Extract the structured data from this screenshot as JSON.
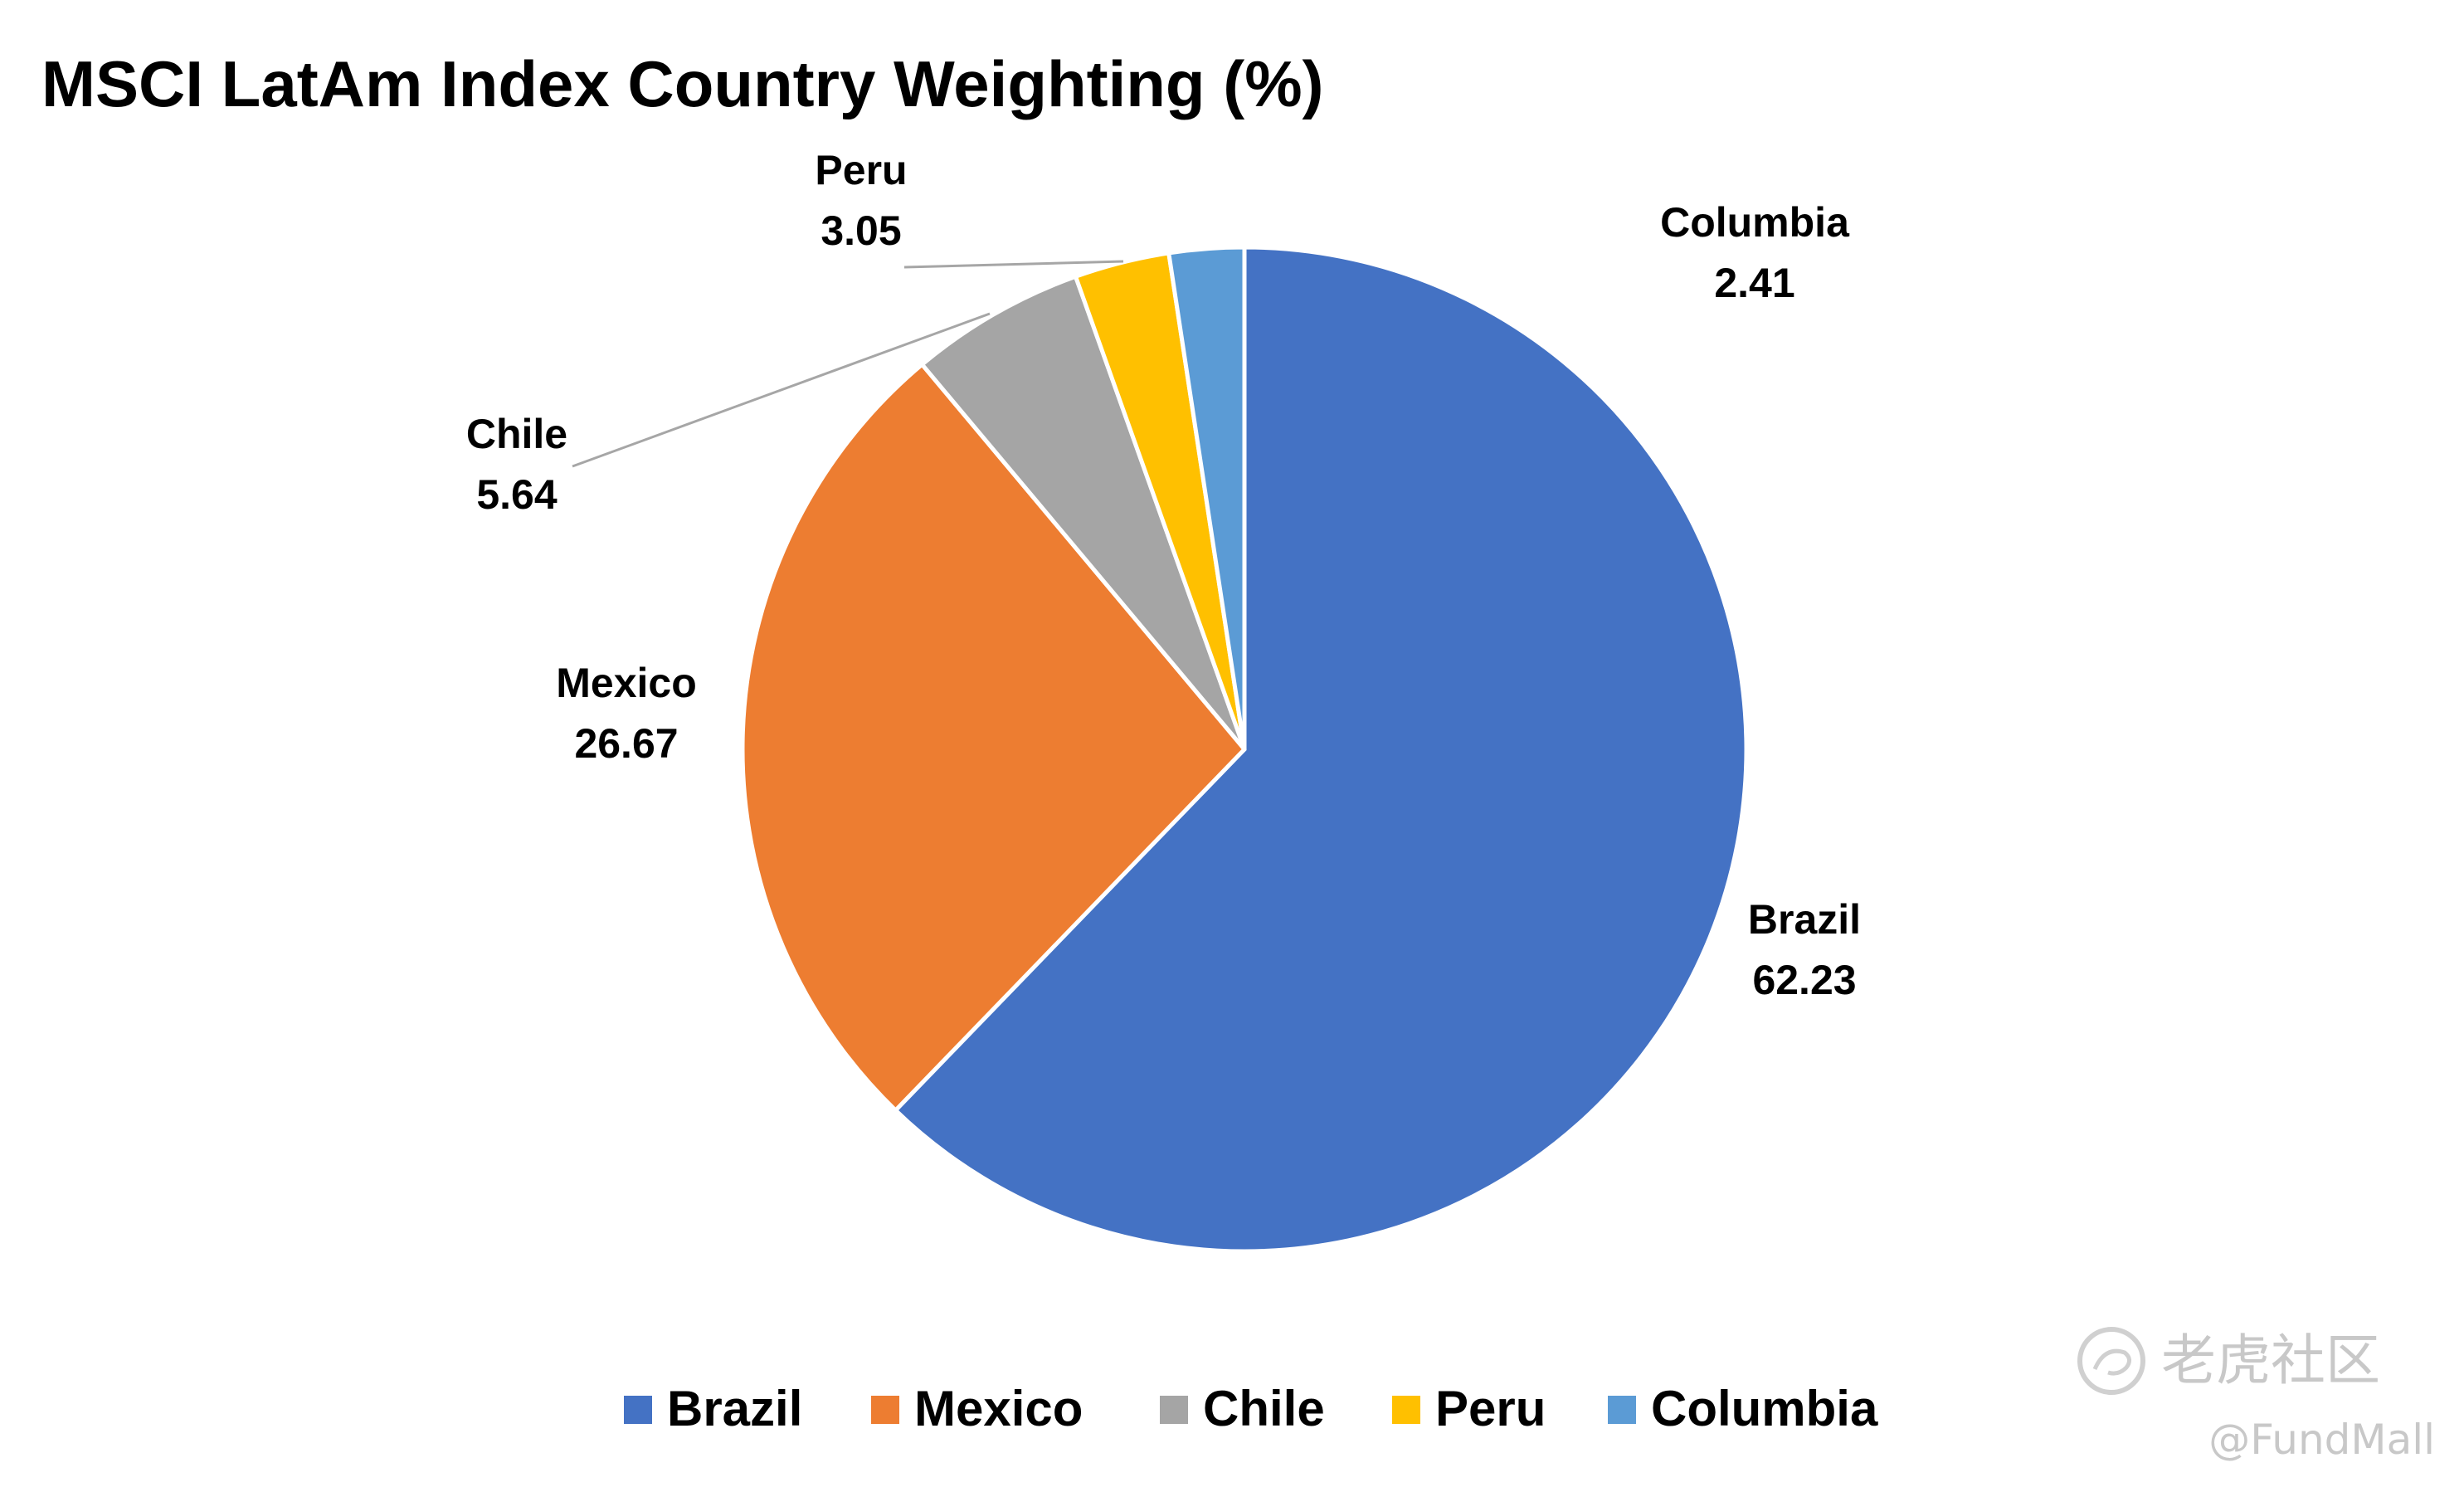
{
  "chart_data": {
    "type": "pie",
    "title": "MSCI LatAm Index Country Weighting (%)",
    "categories": [
      "Brazil",
      "Mexico",
      "Chile",
      "Peru",
      "Columbia"
    ],
    "values": [
      62.23,
      26.67,
      5.64,
      3.05,
      2.41
    ],
    "colors": [
      "#4472C4",
      "#ED7D31",
      "#A5A5A5",
      "#FFC000",
      "#5B9BD5"
    ],
    "data_labels": true,
    "legend": "bottom",
    "start": "12 o'clock, clockwise"
  },
  "watermark": {
    "brand": "老虎社区",
    "handle": "@FundMall"
  }
}
